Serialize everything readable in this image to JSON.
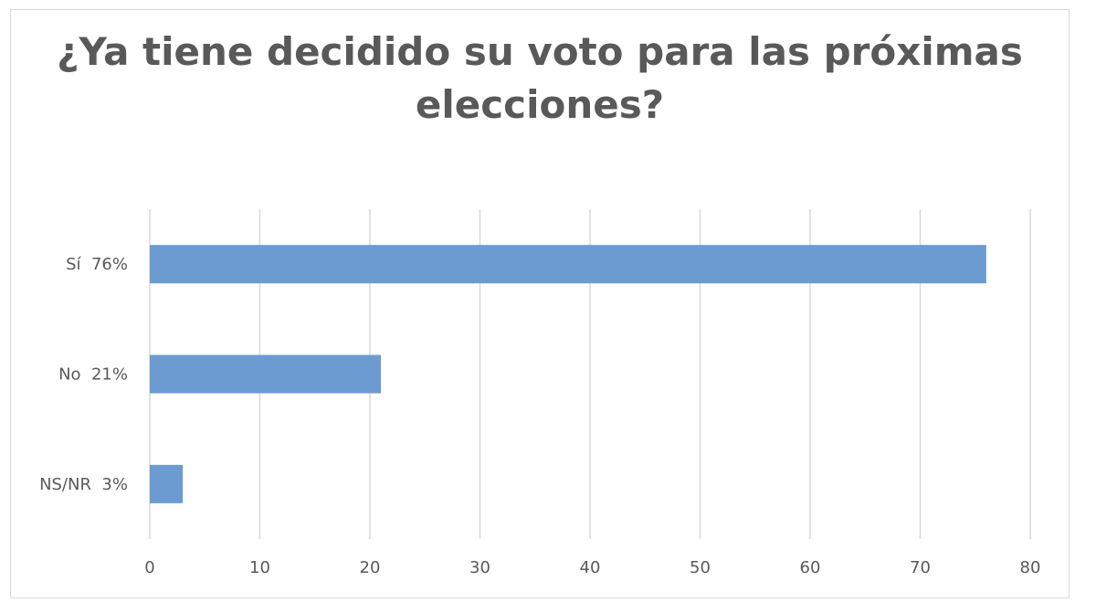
{
  "chart_data": {
    "type": "bar",
    "orientation": "horizontal",
    "title_lines": [
      "¿Ya tiene decidido su voto para las próximas",
      "elecciones?"
    ],
    "categories": [
      "Sí  76%",
      "No  21%",
      "NS/NR  3%"
    ],
    "values": [
      76,
      21,
      3
    ],
    "xlim": [
      0,
      80
    ],
    "xticks": [
      0,
      10,
      20,
      30,
      40,
      50,
      60,
      70,
      80
    ],
    "grid": true,
    "legend": "none",
    "bar_color": "#6b9bd1",
    "grid_color": "#d9d9d9",
    "text_color": "#595959"
  }
}
